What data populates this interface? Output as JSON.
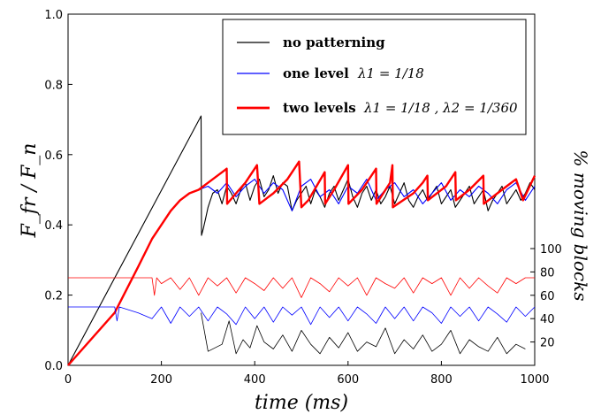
{
  "chart_data": {
    "type": "line",
    "title": "",
    "xlabel": "time (ms)",
    "ylabel": "F_fr / F_n",
    "y2label": "% moving blocks",
    "xlim": [
      0,
      1000
    ],
    "ylim": [
      0,
      1.0
    ],
    "y2lim": [
      0,
      100
    ],
    "x_ticks": [
      "0",
      "200",
      "400",
      "600",
      "800",
      "1000"
    ],
    "y_ticks": [
      "0.0",
      "0.2",
      "0.4",
      "0.6",
      "0.8",
      "1.0"
    ],
    "y2_ticks": [
      "20",
      "40",
      "60",
      "80",
      "100"
    ],
    "legend_position": "top-right",
    "legend": [
      {
        "name": "no patterning",
        "color": "#000000",
        "math": ""
      },
      {
        "name": "one level",
        "color": "#0000ff",
        "math": "λ1 = 1/18"
      },
      {
        "name": "two levels",
        "color": "#ff0000",
        "math": "λ1 = 1/18 , λ2 = 1/360"
      }
    ],
    "series": [
      {
        "name": "no patterning",
        "color": "#000000",
        "x": [
          0,
          285,
          286,
          290,
          295,
          300,
          305,
          310,
          320,
          330,
          340,
          350,
          360,
          370,
          380,
          390,
          400,
          410,
          420,
          430,
          440,
          450,
          460,
          470,
          480,
          490,
          500,
          510,
          520,
          530,
          540,
          550,
          560,
          570,
          580,
          590,
          600,
          610,
          620,
          630,
          640,
          650,
          660,
          670,
          680,
          690,
          700,
          710,
          720,
          730,
          740,
          750,
          760,
          770,
          780,
          790,
          800,
          810,
          820,
          830,
          840,
          850,
          860,
          870,
          880,
          890,
          900,
          910,
          920,
          930,
          940,
          950,
          960,
          970,
          980,
          990,
          1000
        ],
        "y": [
          0,
          0.71,
          0.37,
          0.39,
          0.42,
          0.45,
          0.47,
          0.49,
          0.5,
          0.46,
          0.51,
          0.49,
          0.46,
          0.5,
          0.52,
          0.47,
          0.51,
          0.53,
          0.48,
          0.5,
          0.54,
          0.49,
          0.52,
          0.51,
          0.44,
          0.47,
          0.49,
          0.51,
          0.46,
          0.5,
          0.48,
          0.45,
          0.49,
          0.51,
          0.47,
          0.5,
          0.53,
          0.48,
          0.45,
          0.49,
          0.51,
          0.47,
          0.5,
          0.46,
          0.48,
          0.51,
          0.46,
          0.49,
          0.52,
          0.47,
          0.45,
          0.48,
          0.5,
          0.47,
          0.49,
          0.51,
          0.46,
          0.48,
          0.5,
          0.45,
          0.47,
          0.49,
          0.51,
          0.46,
          0.48,
          0.5,
          0.44,
          0.47,
          0.49,
          0.51,
          0.46,
          0.48,
          0.5,
          0.47,
          0.49,
          0.52,
          0.5
        ]
      },
      {
        "name": "one level",
        "color": "#0000ff",
        "x": [
          0,
          100,
          150,
          180,
          200,
          220,
          240,
          260,
          280,
          300,
          320,
          340,
          360,
          380,
          400,
          420,
          440,
          460,
          480,
          500,
          520,
          540,
          560,
          580,
          600,
          620,
          640,
          660,
          680,
          700,
          720,
          740,
          760,
          780,
          800,
          820,
          840,
          860,
          880,
          900,
          920,
          940,
          960,
          980,
          1000
        ],
        "y": [
          0,
          0.15,
          0.28,
          0.36,
          0.4,
          0.44,
          0.47,
          0.49,
          0.5,
          0.51,
          0.49,
          0.52,
          0.48,
          0.51,
          0.53,
          0.49,
          0.52,
          0.5,
          0.44,
          0.51,
          0.53,
          0.48,
          0.5,
          0.46,
          0.51,
          0.49,
          0.53,
          0.47,
          0.5,
          0.52,
          0.48,
          0.5,
          0.46,
          0.49,
          0.52,
          0.47,
          0.5,
          0.48,
          0.51,
          0.49,
          0.46,
          0.5,
          0.52,
          0.47,
          0.51
        ]
      },
      {
        "name": "two levels",
        "color": "#ff0000",
        "x": [
          0,
          100,
          150,
          180,
          200,
          220,
          240,
          260,
          280,
          300,
          340,
          341,
          360,
          380,
          405,
          410,
          420,
          430,
          440,
          470,
          495,
          500,
          515,
          550,
          551,
          570,
          600,
          601,
          630,
          660,
          661,
          690,
          695,
          696,
          740,
          760,
          770,
          771,
          810,
          830,
          831,
          860,
          890,
          891,
          920,
          940,
          960,
          975,
          1000
        ],
        "y": [
          0,
          0.15,
          0.28,
          0.36,
          0.4,
          0.44,
          0.47,
          0.49,
          0.5,
          0.52,
          0.56,
          0.46,
          0.49,
          0.52,
          0.57,
          0.46,
          0.47,
          0.48,
          0.49,
          0.53,
          0.58,
          0.45,
          0.47,
          0.55,
          0.46,
          0.5,
          0.57,
          0.46,
          0.5,
          0.56,
          0.46,
          0.52,
          0.57,
          0.45,
          0.49,
          0.52,
          0.54,
          0.47,
          0.51,
          0.55,
          0.47,
          0.5,
          0.54,
          0.46,
          0.49,
          0.51,
          0.53,
          0.47,
          0.54
        ]
      },
      {
        "name": "two levels % moving blocks",
        "color": "#ff0000",
        "axis": "right",
        "x": [
          0,
          180,
          185,
          190,
          200,
          220,
          240,
          260,
          280,
          300,
          320,
          340,
          360,
          380,
          400,
          420,
          440,
          460,
          480,
          500,
          520,
          540,
          560,
          580,
          600,
          620,
          640,
          660,
          680,
          700,
          720,
          740,
          760,
          780,
          800,
          820,
          840,
          860,
          880,
          900,
          920,
          940,
          960,
          980,
          1000
        ],
        "y": [
          75,
          75,
          60,
          75,
          70,
          75,
          65,
          75,
          60,
          75,
          68,
          75,
          62,
          75,
          70,
          64,
          75,
          66,
          75,
          58,
          75,
          70,
          63,
          75,
          68,
          75,
          60,
          75,
          70,
          66,
          75,
          62,
          75,
          70,
          75,
          60,
          75,
          66,
          75,
          68,
          62,
          75,
          70,
          75,
          75
        ]
      },
      {
        "name": "one level % moving blocks",
        "color": "#0000ff",
        "axis": "right",
        "x": [
          0,
          100,
          105,
          110,
          150,
          180,
          200,
          220,
          240,
          260,
          280,
          300,
          320,
          340,
          360,
          380,
          400,
          420,
          440,
          460,
          480,
          500,
          520,
          540,
          560,
          580,
          600,
          620,
          640,
          660,
          680,
          700,
          720,
          740,
          760,
          780,
          800,
          820,
          840,
          860,
          880,
          900,
          920,
          940,
          960,
          980,
          1000
        ],
        "y": [
          50,
          50,
          38,
          50,
          45,
          40,
          50,
          36,
          50,
          42,
          50,
          38,
          50,
          44,
          35,
          50,
          40,
          50,
          37,
          50,
          43,
          50,
          35,
          50,
          41,
          50,
          38,
          50,
          44,
          36,
          50,
          40,
          50,
          38,
          50,
          45,
          36,
          50,
          42,
          50,
          38,
          50,
          44,
          37,
          50,
          42,
          50
        ]
      },
      {
        "name": "no patterning % moving blocks",
        "color": "#000000",
        "axis": "right",
        "x": [
          285,
          300,
          330,
          345,
          360,
          375,
          390,
          405,
          420,
          440,
          460,
          480,
          500,
          520,
          540,
          560,
          580,
          600,
          620,
          640,
          660,
          680,
          700,
          720,
          740,
          760,
          780,
          800,
          820,
          840,
          860,
          880,
          900,
          920,
          940,
          960,
          980
        ],
        "y": [
          45,
          12,
          18,
          38,
          10,
          22,
          15,
          34,
          20,
          14,
          26,
          12,
          30,
          18,
          10,
          24,
          15,
          28,
          12,
          20,
          16,
          32,
          10,
          22,
          14,
          26,
          12,
          18,
          30,
          10,
          22,
          16,
          12,
          24,
          10,
          18,
          14
        ]
      }
    ]
  }
}
